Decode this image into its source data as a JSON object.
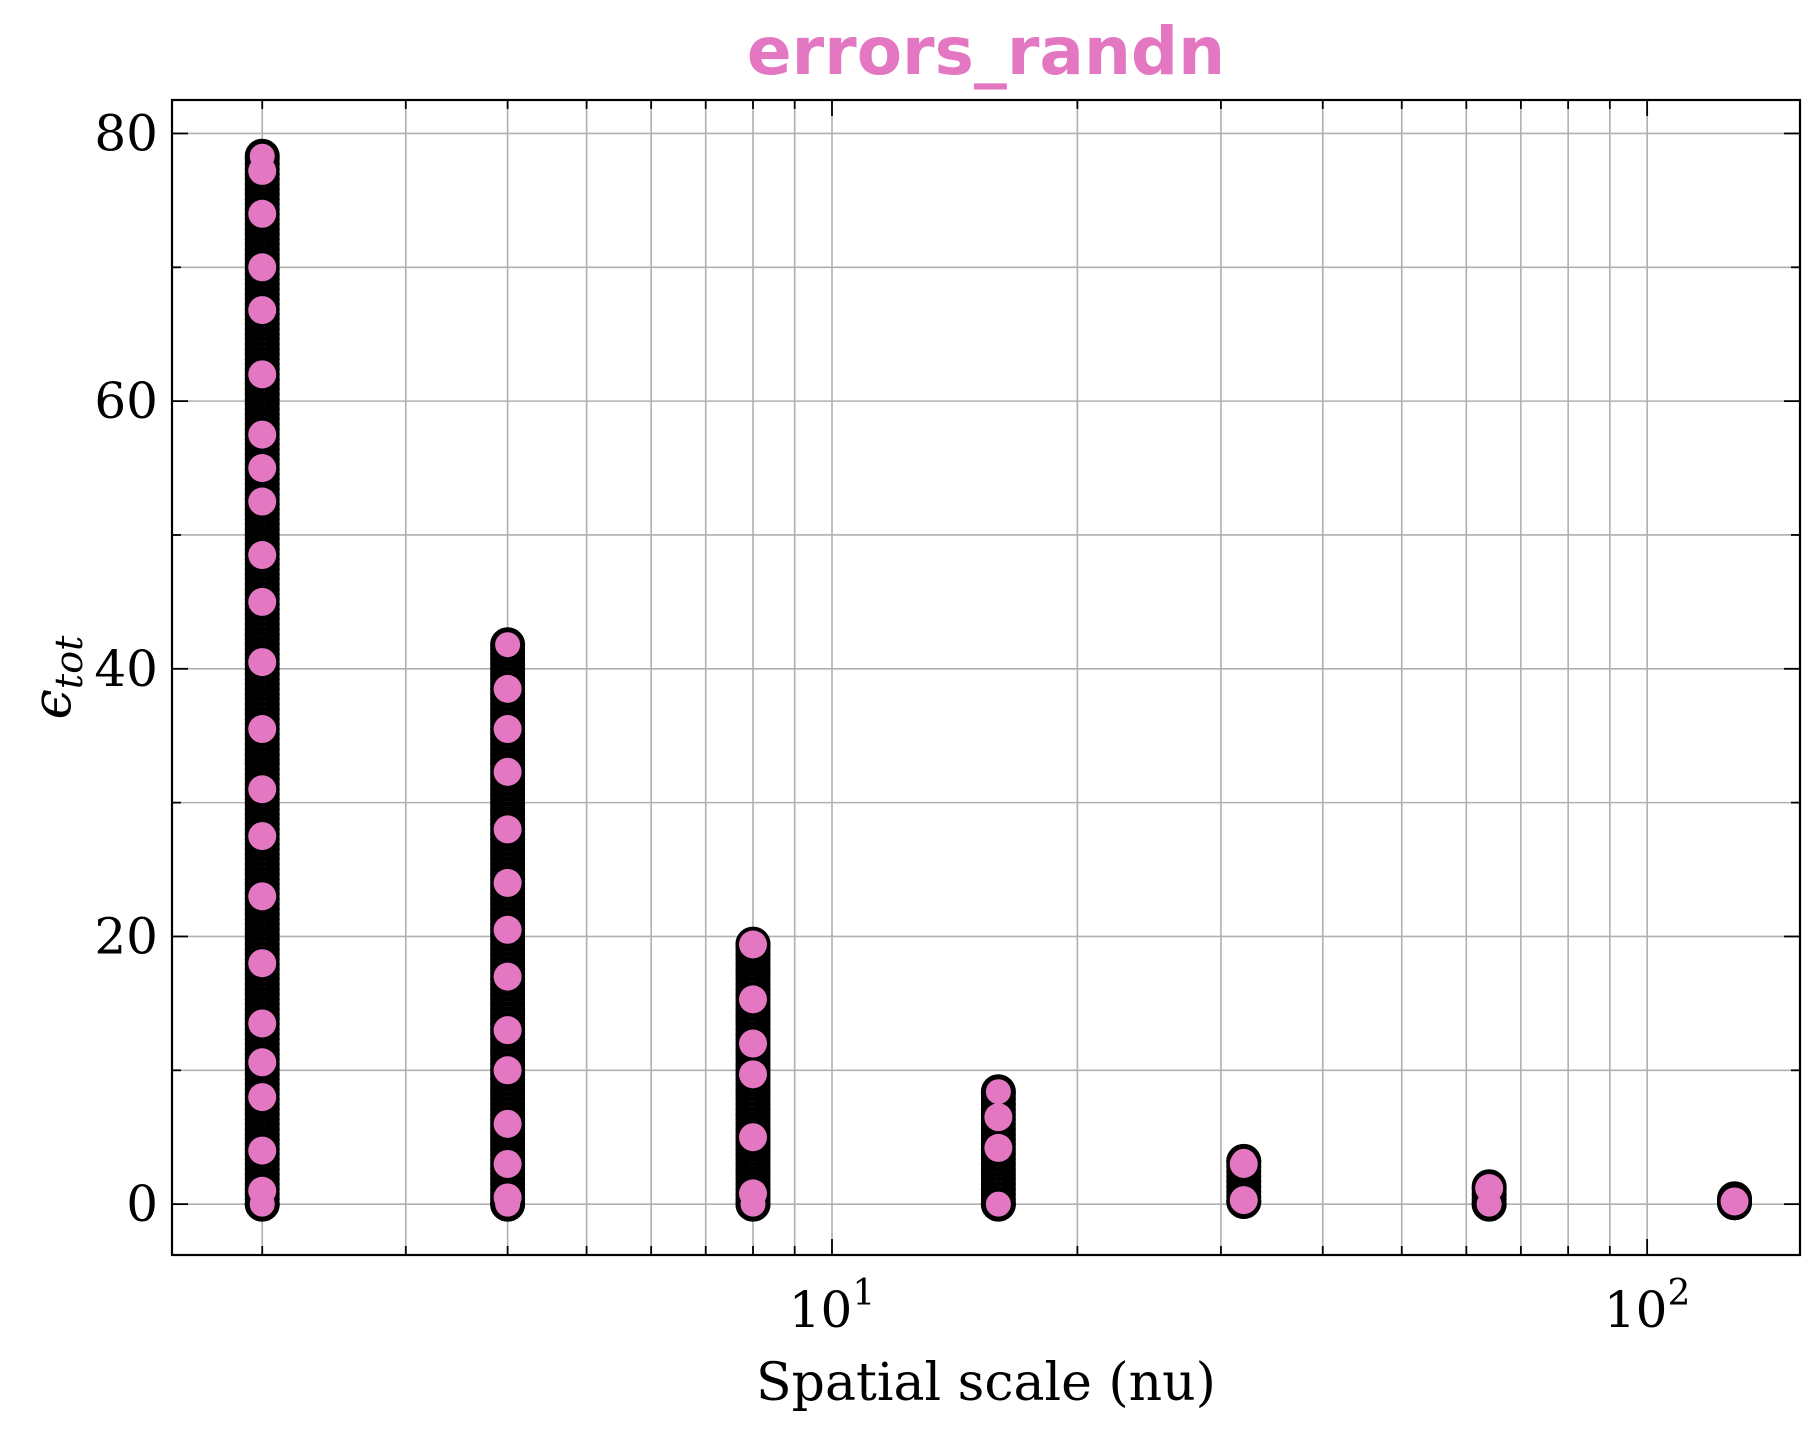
{
  "chart_data": {
    "type": "scatter",
    "title": "errors_randn",
    "xlabel": "Spatial scale (nu)",
    "ylabel": "ϵ",
    "ylabel_sub": "tot",
    "xscale": "log",
    "xlim": [
      1.55,
      154
    ],
    "ylim": [
      -3.8,
      82.5
    ],
    "grid": true,
    "colors": {
      "marker_fill": "#e377c2",
      "marker_edge": "#000000",
      "title": "#e377c2",
      "grid": "#b0b0b0"
    },
    "y_ticks": [
      {
        "value": 0,
        "label": "0"
      },
      {
        "value": 20,
        "label": "20"
      },
      {
        "value": 40,
        "label": "40"
      },
      {
        "value": 60,
        "label": "60"
      },
      {
        "value": 80,
        "label": "80"
      }
    ],
    "x_ticks": [
      {
        "value": 10,
        "base": "10",
        "exp": "1"
      },
      {
        "value": 100,
        "base": "10",
        "exp": "2"
      }
    ],
    "groups": [
      {
        "x": 2,
        "y_min": 0,
        "y_max": 78.3,
        "highlights": [
          77.2,
          66.8,
          52.5,
          8.0,
          10.6,
          13.5,
          18.0,
          23.0,
          27.5,
          31.0,
          35.5,
          40.5,
          45.0,
          48.5,
          55.0,
          57.5,
          62.0,
          70.0,
          74.0,
          4.0,
          1.0
        ]
      },
      {
        "x": 4,
        "y_min": 0,
        "y_max": 41.8,
        "highlights": [
          32.3,
          28.0,
          24.0,
          20.5,
          17.0,
          13.0,
          10.0,
          6.0,
          3.0,
          0.5,
          35.5,
          38.5
        ]
      },
      {
        "x": 8,
        "y_min": 0,
        "y_max": 19.4,
        "highlights": [
          19.4,
          15.3,
          9.7,
          0.8,
          5.0,
          12.0
        ]
      },
      {
        "x": 16,
        "y_min": 0,
        "y_max": 8.4,
        "highlights": [
          6.5,
          4.2
        ]
      },
      {
        "x": 32,
        "y_min": 0.2,
        "y_max": 3.2,
        "highlights": [
          3.0,
          0.3
        ]
      },
      {
        "x": 64,
        "y_min": 0,
        "y_max": 1.3,
        "highlights": [
          1.2
        ]
      },
      {
        "x": 128,
        "y_min": 0.1,
        "y_max": 0.4,
        "highlights": [
          0.2
        ]
      }
    ]
  }
}
